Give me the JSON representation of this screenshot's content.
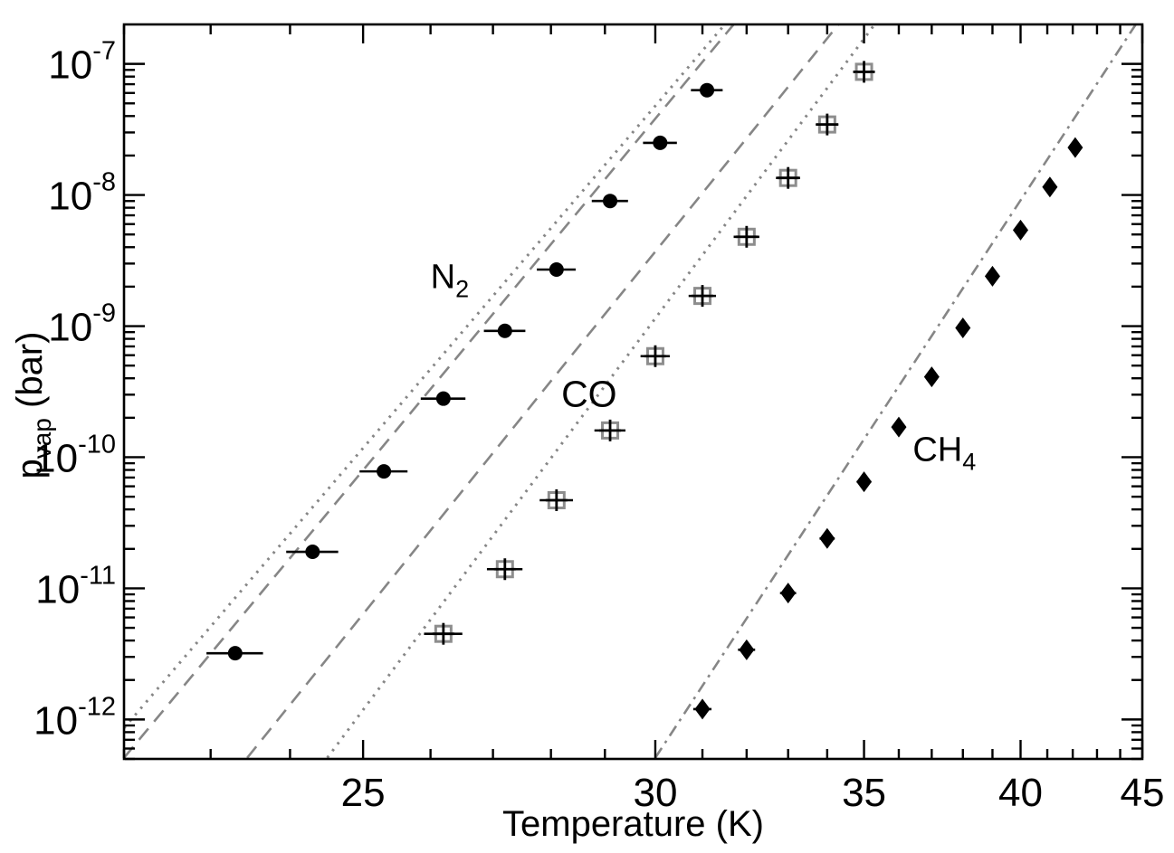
{
  "figure": {
    "title": "",
    "xlabel": "Temperature (K)",
    "ylabel_base": "p",
    "ylabel_sub": "vap",
    "ylabel_rest": " (bar)"
  },
  "chart_data": {
    "type": "scatter",
    "title": "",
    "xlabel": "Temperature (K)",
    "ylabel": "p_vap (bar)",
    "x_scale": "inverse-temperature-linear-in-1/T",
    "y_scale": "log",
    "xlim": [
      22,
      45
    ],
    "ylim": [
      5e-13,
      2e-07
    ],
    "grid": false,
    "legend": "none (inline species labels)",
    "x_major_ticks": [
      25,
      30,
      35,
      40,
      45
    ],
    "x_minor_tick_step": 1,
    "y_major_ticks": [
      1e-07,
      1e-08,
      1e-09,
      1e-10,
      1e-11,
      1e-12
    ],
    "y_tick_label_exponents": [
      -7,
      -8,
      -9,
      -10,
      -11,
      -12
    ],
    "marker_color": "#000000",
    "line_color": "#868686",
    "series": [
      {
        "name": "N2",
        "label": "N",
        "label_sub": "2",
        "marker": "filled-circle",
        "T_err": 0.35,
        "label_at": {
          "T": 26.3,
          "p": 2.4e-09
        },
        "points": [
          {
            "T": 23.3,
            "p": 3.2e-12
          },
          {
            "T": 24.3,
            "p": 1.9e-11
          },
          {
            "T": 25.3,
            "p": 7.8e-11
          },
          {
            "T": 26.2,
            "p": 2.8e-10
          },
          {
            "T": 27.2,
            "p": 9.2e-10
          },
          {
            "T": 28.1,
            "p": 2.7e-09
          },
          {
            "T": 29.1,
            "p": 9e-09
          },
          {
            "T": 30.1,
            "p": 2.5e-08
          },
          {
            "T": 31.1,
            "p": 6.3e-08
          }
        ]
      },
      {
        "name": "CO",
        "label": "CO",
        "label_sub": "",
        "marker": "square-cross",
        "T_err": 0.3,
        "label_at": {
          "T": 28.7,
          "p": 3e-10
        },
        "points": [
          {
            "T": 26.2,
            "p": 4.5e-12
          },
          {
            "T": 27.2,
            "p": 1.4e-11
          },
          {
            "T": 28.1,
            "p": 4.7e-11
          },
          {
            "T": 29.1,
            "p": 1.6e-10
          },
          {
            "T": 30.0,
            "p": 5.9e-10
          },
          {
            "T": 31.0,
            "p": 1.7e-09
          },
          {
            "T": 32.0,
            "p": 4.8e-09
          },
          {
            "T": 33.0,
            "p": 1.35e-08
          },
          {
            "T": 34.0,
            "p": 3.45e-08
          },
          {
            "T": 35.0,
            "p": 8.7e-08
          }
        ]
      },
      {
        "name": "CH4",
        "label": "CH",
        "label_sub": "4",
        "marker": "filled-diamond",
        "T_err": 0.2,
        "label_at": {
          "T": 37.4,
          "p": 1.15e-10
        },
        "points": [
          {
            "T": 31.0,
            "p": 1.2e-12
          },
          {
            "T": 32.0,
            "p": 3.4e-12
          },
          {
            "T": 33.0,
            "p": 9.2e-12
          },
          {
            "T": 34.0,
            "p": 2.4e-11
          },
          {
            "T": 35.0,
            "p": 6.5e-11
          },
          {
            "T": 36.0,
            "p": 1.7e-10
          },
          {
            "T": 37.0,
            "p": 4.1e-10
          },
          {
            "T": 38.0,
            "p": 9.7e-10
          },
          {
            "T": 39.0,
            "p": 2.4e-09
          },
          {
            "T": 40.0,
            "p": 5.4e-09
          },
          {
            "T": 41.1,
            "p": 1.15e-08
          },
          {
            "T": 42.1,
            "p": 2.3e-08
          }
        ]
      }
    ],
    "model_lines": [
      {
        "name": "n2-model-dotted",
        "species": "N2",
        "style": "dotted",
        "from": {
          "T": 22.0,
          "p": 8.6e-13
        },
        "to": {
          "T": 31.5,
          "p": 2e-07
        }
      },
      {
        "name": "n2-model-dashed",
        "species": "N2",
        "style": "dashed",
        "from": {
          "T": 22.0,
          "p": 5.1e-13
        },
        "to": {
          "T": 31.7,
          "p": 2e-07
        }
      },
      {
        "name": "co-model-dashed",
        "species": "CO",
        "style": "dashed",
        "from": {
          "T": 23.45,
          "p": 5.1e-13
        },
        "to": {
          "T": 34.3,
          "p": 2e-07
        }
      },
      {
        "name": "co-model-dotted",
        "species": "CO",
        "style": "dotted",
        "from": {
          "T": 24.5,
          "p": 5.1e-13
        },
        "to": {
          "T": 35.3,
          "p": 2e-07
        }
      },
      {
        "name": "ch4-model-dashdot",
        "species": "CH4",
        "style": "dashdot",
        "from": {
          "T": 30.0,
          "p": 5.1e-13
        },
        "to": {
          "T": 44.7,
          "p": 2e-07
        }
      }
    ]
  }
}
